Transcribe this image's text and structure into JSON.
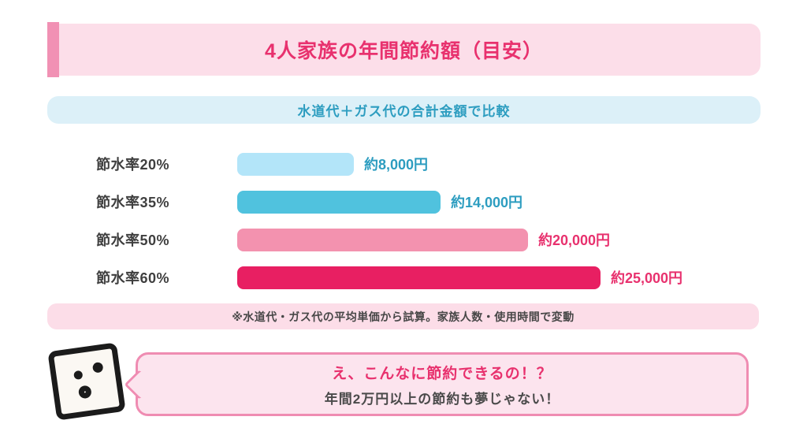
{
  "header": {
    "title": "4人家族の年間節約額（目安）",
    "bg_color": "#fcdee9",
    "accent_color": "#f191b4",
    "title_color": "#e8316e"
  },
  "subheader": {
    "label": "水道代＋ガス代の合計金額で比較",
    "bg_color": "#dcf0f8",
    "text_color": "#2d9dc0"
  },
  "chart_data": {
    "type": "bar",
    "orientation": "horizontal",
    "title": "4人家族の年間節約額（目安）",
    "categories": [
      "節水率20%",
      "節水率35%",
      "節水率50%",
      "節水率60%"
    ],
    "values": [
      8000,
      14000,
      20000,
      25000
    ],
    "value_labels": [
      "約8,000円",
      "約14,000円",
      "約20,000円",
      "約25,000円"
    ],
    "bar_colors": [
      "#b3e5f9",
      "#50c2de",
      "#f392af",
      "#e81f62"
    ],
    "value_label_colors": [
      "#2d9dc0",
      "#2d9dc0",
      "#e8316e",
      "#e8316e"
    ],
    "xlim": [
      0,
      25000
    ],
    "unit": "円",
    "grid": false,
    "legend": false
  },
  "footnote": {
    "text": "※水道代・ガス代の平均単価から試算。家族人数・使用時間で変動",
    "bg_color": "#fcdde8"
  },
  "mascot": {
    "icon": "surprised-square-face-icon"
  },
  "callout": {
    "line1": "え、こんなに節約できるの！？",
    "line2": "年間2万円以上の節約も夢じゃない！",
    "bg_color": "#fce4ee",
    "border_color": "#ef8cb2"
  }
}
